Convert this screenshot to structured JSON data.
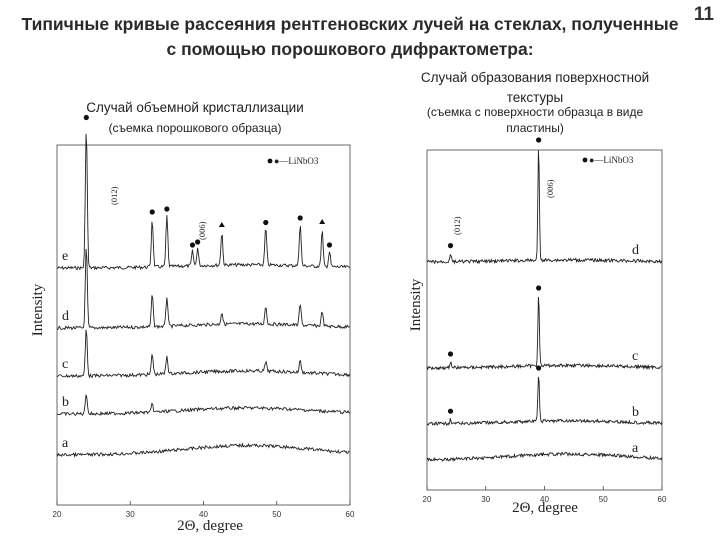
{
  "slide": {
    "title": "Типичные кривые рассеяния рентгеновских лучей на стеклах, полученные с помощью порошкового дифрактометра:",
    "page_number": "11"
  },
  "left_panel": {
    "caption": "Случай объемной кристаллизации",
    "subcaption": "(съемка порошкового образца)"
  },
  "right_panel": {
    "caption": "Случай образования поверхностной текстуры",
    "subcaption": "(съемка с поверхности образца в виде пластины)"
  },
  "chart_data": [
    {
      "type": "line",
      "ylabel": "Intensity",
      "xlabel": "2Θ, degree",
      "x_ticks": [
        "20",
        "30",
        "40",
        "50",
        "60"
      ],
      "xlim": [
        20,
        60
      ],
      "legend": "●—LiNbO3",
      "peak_labels": [
        "(012)",
        "(006)"
      ],
      "series": [
        {
          "name": "e",
          "peaks": [
            {
              "x": 24.0,
              "h": 0.95,
              "dot": true
            },
            {
              "x": 33.0,
              "h": 0.32,
              "dot": true
            },
            {
              "x": 35.0,
              "h": 0.34,
              "dot": true
            },
            {
              "x": 38.5,
              "h": 0.1,
              "dot": true
            },
            {
              "x": 39.2,
              "h": 0.12,
              "dot": true
            },
            {
              "x": 42.5,
              "h": 0.22,
              "dot": false
            },
            {
              "x": 48.5,
              "h": 0.25,
              "dot": true
            },
            {
              "x": 53.2,
              "h": 0.28,
              "dot": true
            },
            {
              "x": 56.2,
              "h": 0.24,
              "dot": false
            },
            {
              "x": 57.2,
              "h": 0.1,
              "dot": true
            }
          ]
        },
        {
          "name": "d",
          "peaks": [
            {
              "x": 24.0,
              "h": 0.55
            },
            {
              "x": 33.0,
              "h": 0.22
            },
            {
              "x": 35.0,
              "h": 0.2
            },
            {
              "x": 42.5,
              "h": 0.08
            },
            {
              "x": 48.5,
              "h": 0.12
            },
            {
              "x": 53.2,
              "h": 0.14
            },
            {
              "x": 56.2,
              "h": 0.1
            }
          ]
        },
        {
          "name": "c",
          "peaks": [
            {
              "x": 24.0,
              "h": 0.32
            },
            {
              "x": 33.0,
              "h": 0.14
            },
            {
              "x": 35.0,
              "h": 0.12
            },
            {
              "x": 48.5,
              "h": 0.06
            },
            {
              "x": 53.2,
              "h": 0.08
            }
          ]
        },
        {
          "name": "b",
          "peaks": [
            {
              "x": 24.0,
              "h": 0.14
            },
            {
              "x": 33.0,
              "h": 0.05
            }
          ]
        },
        {
          "name": "a",
          "peaks": []
        }
      ]
    },
    {
      "type": "line",
      "ylabel": "Intensity",
      "xlabel": "2Θ, degree",
      "x_ticks": [
        "20",
        "30",
        "40",
        "50",
        "60"
      ],
      "xlim": [
        20,
        60
      ],
      "legend": "●—LiNbO3",
      "peak_labels": [
        "(012)",
        "(006)"
      ],
      "series": [
        {
          "name": "d",
          "peaks": [
            {
              "x": 24.0,
              "h": 0.07
            },
            {
              "x": 39.0,
              "h": 0.95
            }
          ]
        },
        {
          "name": "c",
          "peaks": [
            {
              "x": 24.0,
              "h": 0.05
            },
            {
              "x": 39.0,
              "h": 0.6
            }
          ]
        },
        {
          "name": "b",
          "peaks": [
            {
              "x": 24.0,
              "h": 0.04
            },
            {
              "x": 39.0,
              "h": 0.4
            }
          ]
        },
        {
          "name": "a",
          "peaks": []
        }
      ]
    }
  ]
}
